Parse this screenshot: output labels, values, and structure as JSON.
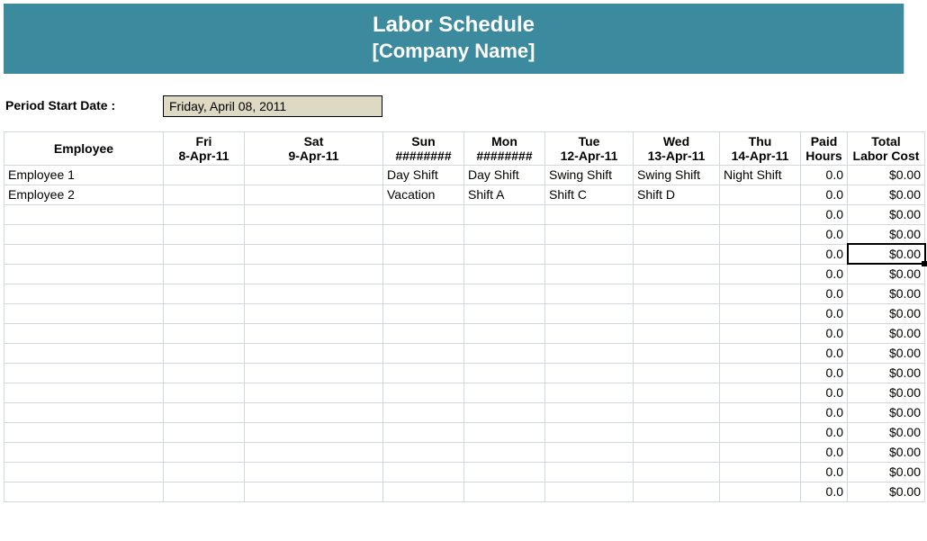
{
  "banner": {
    "title": "Labor Schedule",
    "company": "[Company Name]",
    "bg_color": "#3b8a9e",
    "text_color": "#ffffff"
  },
  "period": {
    "label": "Period Start Date :",
    "value": "Friday, April 08, 2011",
    "value_bg": "#ddd9c3"
  },
  "headers": {
    "employee": "Employee",
    "days": [
      {
        "dow": "Fri",
        "date": "8-Apr-11"
      },
      {
        "dow": "Sat",
        "date": "9-Apr-11"
      },
      {
        "dow": "Sun",
        "date": "########"
      },
      {
        "dow": "Mon",
        "date": "########"
      },
      {
        "dow": "Tue",
        "date": "12-Apr-11"
      },
      {
        "dow": "Wed",
        "date": "13-Apr-11"
      },
      {
        "dow": "Thu",
        "date": "14-Apr-11"
      }
    ],
    "paid_l1": "Paid",
    "paid_l2": "Hours",
    "total_l1": "Total",
    "total_l2": "Labor Cost",
    "day_head_bg": "#b6dde8"
  },
  "rows": [
    {
      "employee": "Employee 1",
      "shifts": [
        "",
        "",
        "Day Shift",
        "Day Shift",
        "Swing Shift",
        "Swing Shift",
        "Night Shift"
      ],
      "hours": "0.0",
      "cost": "$0.00"
    },
    {
      "employee": "Employee 2",
      "shifts": [
        "",
        "",
        "Vacation",
        "Shift A",
        "Shift C",
        "Shift  D",
        ""
      ],
      "hours": "0.0",
      "cost": "$0.00"
    },
    {
      "employee": "",
      "shifts": [
        "",
        "",
        "",
        "",
        "",
        "",
        ""
      ],
      "hours": "0.0",
      "cost": "$0.00"
    },
    {
      "employee": "",
      "shifts": [
        "",
        "",
        "",
        "",
        "",
        "",
        ""
      ],
      "hours": "0.0",
      "cost": "$0.00"
    },
    {
      "employee": "",
      "shifts": [
        "",
        "",
        "",
        "",
        "",
        "",
        ""
      ],
      "hours": "0.0",
      "cost": "$0.00",
      "selected": true
    },
    {
      "employee": "",
      "shifts": [
        "",
        "",
        "",
        "",
        "",
        "",
        ""
      ],
      "hours": "0.0",
      "cost": "$0.00"
    },
    {
      "employee": "",
      "shifts": [
        "",
        "",
        "",
        "",
        "",
        "",
        ""
      ],
      "hours": "0.0",
      "cost": "$0.00"
    },
    {
      "employee": "",
      "shifts": [
        "",
        "",
        "",
        "",
        "",
        "",
        ""
      ],
      "hours": "0.0",
      "cost": "$0.00"
    },
    {
      "employee": "",
      "shifts": [
        "",
        "",
        "",
        "",
        "",
        "",
        ""
      ],
      "hours": "0.0",
      "cost": "$0.00"
    },
    {
      "employee": "",
      "shifts": [
        "",
        "",
        "",
        "",
        "",
        "",
        ""
      ],
      "hours": "0.0",
      "cost": "$0.00"
    },
    {
      "employee": "",
      "shifts": [
        "",
        "",
        "",
        "",
        "",
        "",
        ""
      ],
      "hours": "0.0",
      "cost": "$0.00"
    },
    {
      "employee": "",
      "shifts": [
        "",
        "",
        "",
        "",
        "",
        "",
        ""
      ],
      "hours": "0.0",
      "cost": "$0.00"
    },
    {
      "employee": "",
      "shifts": [
        "",
        "",
        "",
        "",
        "",
        "",
        ""
      ],
      "hours": "0.0",
      "cost": "$0.00"
    },
    {
      "employee": "",
      "shifts": [
        "",
        "",
        "",
        "",
        "",
        "",
        ""
      ],
      "hours": "0.0",
      "cost": "$0.00"
    },
    {
      "employee": "",
      "shifts": [
        "",
        "",
        "",
        "",
        "",
        "",
        ""
      ],
      "hours": "0.0",
      "cost": "$0.00"
    },
    {
      "employee": "",
      "shifts": [
        "",
        "",
        "",
        "",
        "",
        "",
        ""
      ],
      "hours": "0.0",
      "cost": "$0.00"
    },
    {
      "employee": "",
      "shifts": [
        "",
        "",
        "",
        "",
        "",
        "",
        ""
      ],
      "hours": "0.0",
      "cost": "$0.00"
    }
  ],
  "grid_color": "#d0d7de",
  "border_color": "#000000"
}
